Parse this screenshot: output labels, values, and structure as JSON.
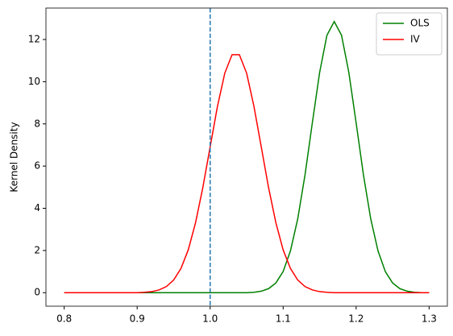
{
  "chart_data": {
    "type": "line",
    "y_label": "Kernel Density",
    "x": [
      0.8,
      0.81,
      0.82,
      0.83,
      0.84,
      0.85,
      0.86,
      0.87,
      0.88,
      0.89,
      0.9,
      0.91,
      0.92,
      0.93,
      0.94,
      0.95,
      0.96,
      0.97,
      0.98,
      0.99,
      1.0,
      1.01,
      1.02,
      1.03,
      1.04,
      1.05,
      1.06,
      1.07,
      1.08,
      1.09,
      1.1,
      1.11,
      1.12,
      1.13,
      1.14,
      1.15,
      1.16,
      1.17,
      1.18,
      1.19,
      1.2,
      1.21,
      1.22,
      1.23,
      1.24,
      1.25,
      1.26,
      1.27,
      1.28,
      1.29,
      1.3
    ],
    "series": [
      {
        "name": "OLS",
        "color": "#008000",
        "values": [
          0,
          0,
          0,
          0,
          0,
          0,
          0,
          0,
          0,
          0,
          0,
          0,
          0,
          0,
          0,
          0,
          0,
          0,
          0,
          0,
          0,
          0,
          0,
          0,
          0,
          0,
          0.02,
          0.07,
          0.19,
          0.46,
          1.0,
          1.98,
          3.5,
          5.59,
          8.05,
          10.44,
          12.2,
          12.85,
          12.2,
          10.44,
          8.05,
          5.59,
          3.5,
          1.98,
          1.0,
          0.46,
          0.19,
          0.07,
          0.02,
          0,
          0
        ]
      },
      {
        "name": "IV",
        "color": "#ff0000",
        "values": [
          0,
          0,
          0,
          0,
          0,
          0,
          0,
          0,
          0,
          0,
          0,
          0.02,
          0.05,
          0.13,
          0.29,
          0.6,
          1.15,
          2.03,
          3.32,
          4.99,
          6.91,
          8.83,
          10.4,
          11.28,
          11.28,
          10.4,
          8.83,
          6.91,
          4.99,
          3.32,
          2.03,
          1.15,
          0.6,
          0.29,
          0.13,
          0.05,
          0.02,
          0,
          0,
          0,
          0,
          0,
          0,
          0,
          0,
          0,
          0,
          0,
          0,
          0,
          0
        ]
      }
    ],
    "vline": {
      "x": 1.0,
      "color": "#1f77b4",
      "style": "dashed"
    },
    "xlim": [
      0.775,
      1.325
    ],
    "xticks": [
      0.8,
      0.9,
      {
        "value": 1.0,
        "label": "1.0"
      },
      1.1,
      1.2,
      1.3
    ],
    "ylim": [
      -0.64,
      13.49
    ],
    "yticks": [
      0,
      2,
      4,
      6,
      8,
      10,
      12
    ],
    "grid": false,
    "legend": "upper right"
  }
}
